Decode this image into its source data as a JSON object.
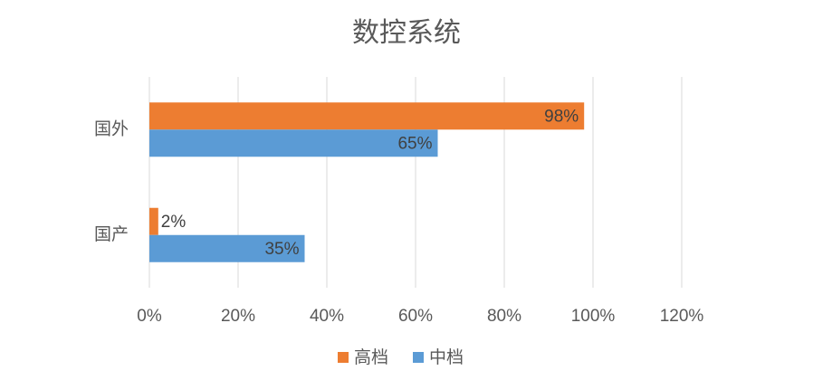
{
  "chart_data": {
    "type": "hbar",
    "title": "数控系统",
    "categories": [
      "国外",
      "国产"
    ],
    "series": [
      {
        "name": "高档",
        "color": "#ed7d31",
        "values": [
          98,
          2
        ],
        "value_labels": [
          "98%",
          "2%"
        ]
      },
      {
        "name": "中档",
        "color": "#5b9bd5",
        "values": [
          65,
          35
        ],
        "value_labels": [
          "65%",
          "35%"
        ]
      }
    ],
    "xlim": [
      0,
      120
    ],
    "xticks": [
      {
        "value": 0,
        "label": "0%"
      },
      {
        "value": 20,
        "label": "20%"
      },
      {
        "value": 40,
        "label": "40%"
      },
      {
        "value": 60,
        "label": "60%"
      },
      {
        "value": 80,
        "label": "80%"
      },
      {
        "value": 100,
        "label": "100%"
      },
      {
        "value": 120,
        "label": "120%"
      }
    ],
    "grid": true,
    "legend": "bottom"
  }
}
